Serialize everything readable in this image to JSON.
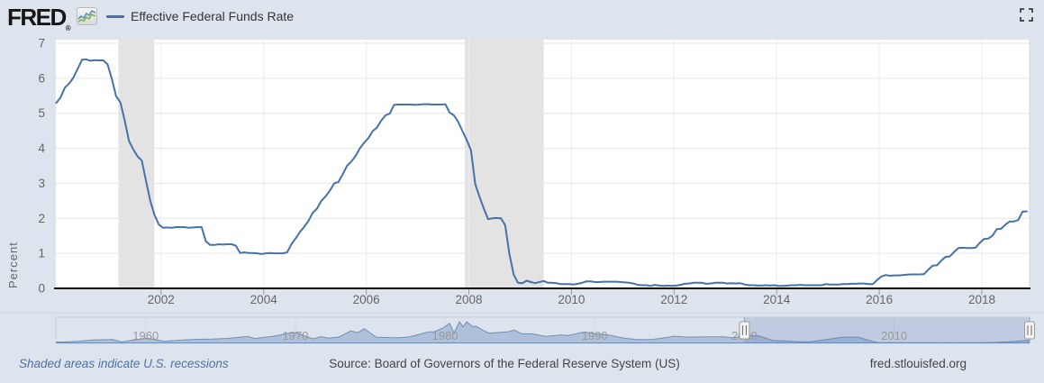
{
  "header": {
    "logo_text": "FRED",
    "registered_mark": "®",
    "legend_label": "Effective Federal Funds Rate"
  },
  "icons": {
    "logo_sparkline": "sparkline-icon",
    "fullscreen": "fullscreen-corners-icon"
  },
  "footer": {
    "recessions_note": "Shaded areas indicate U.S. recessions",
    "source": "Source: Board of Governors of the Federal Reserve System (US)",
    "site": "fred.stlouisfed.org"
  },
  "colors": {
    "background": "#dde4ed",
    "plot_bg": "#ffffff",
    "line": "#4572a7",
    "recession_band": "#e3e3e3",
    "h_grid": "#e6e6e6",
    "v_grid": "#ececec",
    "axis_line": "#000000",
    "tick": "#999999",
    "axis_text": "#666666",
    "plot_right_border": "#d6d6d6",
    "separator": "#ccd3dd",
    "nav_border": "#c6cfdc",
    "nav_grid": "#d2dae4",
    "nav_area_fill": "#a8bbd7",
    "nav_area_line": "#6e90b8",
    "nav_label": "#999999",
    "selection_fill": "rgba(91,116,180,0.22)",
    "selection_edge": "#98a4bc",
    "handle_fill": "#f4f4f4",
    "handle_border": "#9a9a9a",
    "handle_grip": "#666666"
  },
  "chart_data": {
    "type": "line",
    "series_name": "Effective Federal Funds Rate",
    "ylabel": "Percent",
    "ylim": [
      0,
      7
    ],
    "yticks": [
      0,
      1,
      2,
      3,
      4,
      5,
      6,
      7
    ],
    "xticks": [
      2002,
      2004,
      2006,
      2008,
      2010,
      2012,
      2014,
      2016,
      2018
    ],
    "x_range": [
      1999.95,
      2018.93
    ],
    "grid": true,
    "legend_position": "top-left",
    "recessions": [
      [
        2001.17,
        2001.87
      ],
      [
        2007.92,
        2009.46
      ]
    ],
    "monthly": {
      "start_year": 1999,
      "start_month": 12,
      "values": [
        5.3,
        5.45,
        5.73,
        5.85,
        6.02,
        6.27,
        6.53,
        6.54,
        6.5,
        6.52,
        6.51,
        6.51,
        6.4,
        5.98,
        5.49,
        5.31,
        4.8,
        4.21,
        3.97,
        3.77,
        3.65,
        3.07,
        2.49,
        2.09,
        1.82,
        1.73,
        1.74,
        1.73,
        1.75,
        1.75,
        1.75,
        1.73,
        1.74,
        1.75,
        1.75,
        1.34,
        1.24,
        1.24,
        1.26,
        1.25,
        1.26,
        1.26,
        1.22,
        1.01,
        1.03,
        1.01,
        1.01,
        1.0,
        0.98,
        1.0,
        1.01,
        1.0,
        1.0,
        1.0,
        1.03,
        1.26,
        1.43,
        1.61,
        1.76,
        1.93,
        2.16,
        2.28,
        2.5,
        2.63,
        2.79,
        3.0,
        3.04,
        3.26,
        3.5,
        3.62,
        3.78,
        4.0,
        4.16,
        4.29,
        4.49,
        4.59,
        4.79,
        4.94,
        4.99,
        5.24,
        5.25,
        5.25,
        5.25,
        5.25,
        5.24,
        5.25,
        5.26,
        5.26,
        5.25,
        5.25,
        5.25,
        5.26,
        5.02,
        4.94,
        4.76,
        4.49,
        4.24,
        3.94,
        2.98,
        2.61,
        2.28,
        1.98,
        2.0,
        2.01,
        2.0,
        1.81,
        0.97,
        0.39,
        0.16,
        0.15,
        0.22,
        0.18,
        0.15,
        0.18,
        0.21,
        0.16,
        0.16,
        0.15,
        0.12,
        0.12,
        0.12,
        0.11,
        0.13,
        0.16,
        0.2,
        0.2,
        0.18,
        0.18,
        0.19,
        0.19,
        0.19,
        0.19,
        0.18,
        0.17,
        0.16,
        0.14,
        0.1,
        0.09,
        0.09,
        0.07,
        0.1,
        0.08,
        0.07,
        0.08,
        0.07,
        0.08,
        0.1,
        0.13,
        0.14,
        0.16,
        0.16,
        0.16,
        0.13,
        0.14,
        0.16,
        0.16,
        0.16,
        0.14,
        0.15,
        0.14,
        0.15,
        0.11,
        0.09,
        0.09,
        0.08,
        0.08,
        0.09,
        0.08,
        0.09,
        0.07,
        0.07,
        0.08,
        0.09,
        0.09,
        0.1,
        0.09,
        0.09,
        0.09,
        0.09,
        0.09,
        0.12,
        0.11,
        0.11,
        0.11,
        0.12,
        0.12,
        0.13,
        0.13,
        0.14,
        0.14,
        0.12,
        0.12,
        0.24,
        0.34,
        0.38,
        0.36,
        0.37,
        0.37,
        0.38,
        0.39,
        0.4,
        0.4,
        0.4,
        0.41,
        0.54,
        0.65,
        0.66,
        0.79,
        0.9,
        0.91,
        1.04,
        1.15,
        1.16,
        1.15,
        1.15,
        1.16,
        1.3,
        1.41,
        1.42,
        1.51,
        1.69,
        1.7,
        1.82,
        1.91,
        1.91,
        1.95,
        2.19,
        2.2
      ]
    },
    "navigator": {
      "x_range": [
        1954.0,
        2019.05
      ],
      "selection": [
        2000.0,
        2019.05
      ],
      "decade_labels": [
        1960,
        1970,
        1980,
        1990,
        2000,
        2010
      ],
      "points": [
        [
          1954.05,
          0.8
        ],
        [
          1954.6,
          0.85
        ],
        [
          1955.5,
          1.4
        ],
        [
          1956.5,
          2.6
        ],
        [
          1957.8,
          3.0
        ],
        [
          1958.4,
          0.9
        ],
        [
          1959.9,
          4.0
        ],
        [
          1960.3,
          3.9
        ],
        [
          1961.2,
          1.5
        ],
        [
          1962.5,
          2.7
        ],
        [
          1963.5,
          3.3
        ],
        [
          1964.5,
          3.5
        ],
        [
          1965.5,
          4.1
        ],
        [
          1966.8,
          5.8
        ],
        [
          1967.3,
          4.0
        ],
        [
          1968.6,
          6.1
        ],
        [
          1969.7,
          9.2
        ],
        [
          1970.1,
          9.0
        ],
        [
          1970.9,
          4.9
        ],
        [
          1971.2,
          3.7
        ],
        [
          1971.7,
          5.6
        ],
        [
          1972.2,
          4.3
        ],
        [
          1972.9,
          5.3
        ],
        [
          1973.7,
          10.8
        ],
        [
          1974.2,
          9.3
        ],
        [
          1974.6,
          12.9
        ],
        [
          1975.4,
          5.2
        ],
        [
          1976.3,
          4.8
        ],
        [
          1976.9,
          4.7
        ],
        [
          1977.6,
          5.4
        ],
        [
          1978.9,
          10.0
        ],
        [
          1979.3,
          10.1
        ],
        [
          1979.9,
          13.8
        ],
        [
          1980.3,
          17.6
        ],
        [
          1980.6,
          9.0
        ],
        [
          1980.97,
          19.1
        ],
        [
          1981.2,
          14.7
        ],
        [
          1981.45,
          19.1
        ],
        [
          1981.8,
          15.1
        ],
        [
          1982.1,
          14.8
        ],
        [
          1982.6,
          11.0
        ],
        [
          1982.95,
          8.8
        ],
        [
          1983.6,
          9.5
        ],
        [
          1984.2,
          10.1
        ],
        [
          1984.65,
          11.6
        ],
        [
          1985.1,
          8.3
        ],
        [
          1985.9,
          8.1
        ],
        [
          1986.7,
          5.9
        ],
        [
          1987.3,
          6.5
        ],
        [
          1987.75,
          7.3
        ],
        [
          1988.2,
          6.6
        ],
        [
          1989.3,
          9.85
        ],
        [
          1990.1,
          8.2
        ],
        [
          1990.9,
          7.3
        ],
        [
          1991.9,
          4.4
        ],
        [
          1992.8,
          3.0
        ],
        [
          1993.8,
          3.0
        ],
        [
          1994.5,
          4.3
        ],
        [
          1995.3,
          6.05
        ],
        [
          1996.2,
          5.2
        ],
        [
          1997.5,
          5.5
        ],
        [
          1998.6,
          5.5
        ],
        [
          1999.2,
          4.75
        ],
        [
          2000.6,
          6.5
        ],
        [
          2001.0,
          6.2
        ],
        [
          2001.9,
          2.1
        ],
        [
          2002.8,
          1.7
        ],
        [
          2003.6,
          1.0
        ],
        [
          2004.4,
          1.0
        ],
        [
          2005.5,
          3.0
        ],
        [
          2006.6,
          5.25
        ],
        [
          2007.6,
          5.25
        ],
        [
          2008.3,
          2.3
        ],
        [
          2008.95,
          0.2
        ],
        [
          2010.0,
          0.18
        ],
        [
          2012.0,
          0.14
        ],
        [
          2014.0,
          0.09
        ],
        [
          2015.9,
          0.2
        ],
        [
          2016.9,
          0.5
        ],
        [
          2017.9,
          1.2
        ],
        [
          2018.9,
          2.2
        ],
        [
          2019.0,
          2.25
        ]
      ]
    }
  }
}
